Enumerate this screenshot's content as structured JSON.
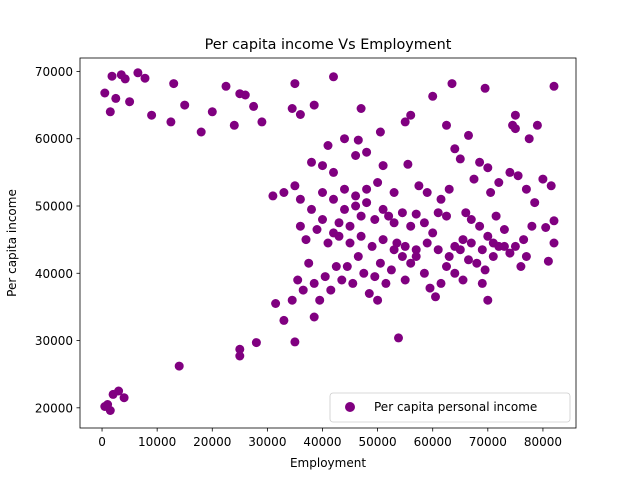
{
  "chart_data": {
    "type": "scatter",
    "title": "Per capita income Vs Employment",
    "xlabel": "Employment",
    "ylabel": "Per capita income",
    "xlim": [
      -4000,
      86000
    ],
    "ylim": [
      17000,
      72000
    ],
    "x_ticks": [
      0,
      10000,
      20000,
      30000,
      40000,
      50000,
      60000,
      70000,
      80000
    ],
    "x_tick_labels": [
      "0",
      "10000",
      "20000",
      "30000",
      "40000",
      "50000",
      "60000",
      "70000",
      "80000"
    ],
    "y_ticks": [
      20000,
      30000,
      40000,
      50000,
      60000,
      70000
    ],
    "y_tick_labels": [
      "20000",
      "30000",
      "40000",
      "50000",
      "60000",
      "70000"
    ],
    "grid": false,
    "legend_position": "lower right",
    "marker_color": "#800080",
    "series": [
      {
        "name": "Per capita personal income",
        "points": [
          [
            500,
            66800
          ],
          [
            1800,
            69300
          ],
          [
            3500,
            69500
          ],
          [
            4200,
            68900
          ],
          [
            6500,
            69800
          ],
          [
            7800,
            69000
          ],
          [
            13000,
            68200
          ],
          [
            15000,
            65000
          ],
          [
            20000,
            64000
          ],
          [
            22500,
            67800
          ],
          [
            25000,
            66700
          ],
          [
            26000,
            66500
          ],
          [
            27500,
            64800
          ],
          [
            35000,
            68200
          ],
          [
            42000,
            69200
          ],
          [
            47000,
            64500
          ],
          [
            60000,
            66300
          ],
          [
            63500,
            68200
          ],
          [
            69500,
            67500
          ],
          [
            82000,
            67800
          ],
          [
            1500,
            64000
          ],
          [
            2500,
            66000
          ],
          [
            5000,
            65500
          ],
          [
            9000,
            63500
          ],
          [
            12500,
            62500
          ],
          [
            18000,
            61000
          ],
          [
            24000,
            62000
          ],
          [
            29000,
            62500
          ],
          [
            34500,
            64500
          ],
          [
            36000,
            63600
          ],
          [
            38500,
            65000
          ],
          [
            41000,
            59000
          ],
          [
            44000,
            60000
          ],
          [
            46500,
            59800
          ],
          [
            48000,
            58000
          ],
          [
            50500,
            61000
          ],
          [
            55000,
            62500
          ],
          [
            56000,
            63500
          ],
          [
            62500,
            62000
          ],
          [
            64000,
            58500
          ],
          [
            65000,
            57000
          ],
          [
            66500,
            60500
          ],
          [
            68500,
            56500
          ],
          [
            70000,
            55700
          ],
          [
            74500,
            62000
          ],
          [
            75000,
            63500
          ],
          [
            77500,
            60000
          ],
          [
            79000,
            62000
          ],
          [
            75000,
            61500
          ],
          [
            38000,
            56500
          ],
          [
            40000,
            56000
          ],
          [
            42000,
            55000
          ],
          [
            46000,
            57500
          ],
          [
            51000,
            56000
          ],
          [
            53000,
            52000
          ],
          [
            55500,
            56200
          ],
          [
            57500,
            53000
          ],
          [
            59000,
            52000
          ],
          [
            61500,
            51000
          ],
          [
            63000,
            52500
          ],
          [
            66000,
            49000
          ],
          [
            67500,
            54000
          ],
          [
            70500,
            52000
          ],
          [
            72000,
            53500
          ],
          [
            74000,
            55000
          ],
          [
            75500,
            54500
          ],
          [
            77000,
            52500
          ],
          [
            78500,
            50500
          ],
          [
            80000,
            54000
          ],
          [
            81500,
            53000
          ],
          [
            82000,
            47800
          ],
          [
            80500,
            46800
          ],
          [
            78000,
            47000
          ],
          [
            76500,
            45000
          ],
          [
            75000,
            44000
          ],
          [
            73000,
            46500
          ],
          [
            71500,
            48500
          ],
          [
            70000,
            45500
          ],
          [
            68500,
            47000
          ],
          [
            67000,
            48000
          ],
          [
            65500,
            45000
          ],
          [
            64000,
            44000
          ],
          [
            62500,
            48500
          ],
          [
            61000,
            49000
          ],
          [
            60000,
            46000
          ],
          [
            58500,
            47500
          ],
          [
            57000,
            48800
          ],
          [
            56000,
            47000
          ],
          [
            54500,
            49000
          ],
          [
            53000,
            47500
          ],
          [
            52000,
            48500
          ],
          [
            51000,
            49500
          ],
          [
            49500,
            48000
          ],
          [
            48000,
            50500
          ],
          [
            47000,
            48500
          ],
          [
            46000,
            50000
          ],
          [
            45000,
            47000
          ],
          [
            44000,
            49500
          ],
          [
            43000,
            47500
          ],
          [
            42000,
            46000
          ],
          [
            82000,
            44500
          ],
          [
            81000,
            41800
          ],
          [
            77000,
            42500
          ],
          [
            76000,
            41000
          ],
          [
            74000,
            43000
          ],
          [
            72000,
            44000
          ],
          [
            71000,
            42500
          ],
          [
            69500,
            40500
          ],
          [
            69000,
            38500
          ],
          [
            68000,
            41500
          ],
          [
            66500,
            42000
          ],
          [
            65500,
            39000
          ],
          [
            64000,
            40000
          ],
          [
            62500,
            41000
          ],
          [
            61500,
            38500
          ],
          [
            60500,
            36500
          ],
          [
            59500,
            37800
          ],
          [
            58500,
            40000
          ],
          [
            57000,
            42500
          ],
          [
            56000,
            41500
          ],
          [
            55000,
            39000
          ],
          [
            54500,
            42500
          ],
          [
            53500,
            44500
          ],
          [
            52500,
            40500
          ],
          [
            51500,
            38500
          ],
          [
            50500,
            41500
          ],
          [
            49500,
            39500
          ],
          [
            48500,
            37000
          ],
          [
            47500,
            40000
          ],
          [
            46500,
            42500
          ],
          [
            45500,
            38500
          ],
          [
            44500,
            41000
          ],
          [
            43500,
            39000
          ],
          [
            42500,
            41000
          ],
          [
            41500,
            37500
          ],
          [
            40500,
            39500
          ],
          [
            39500,
            36000
          ],
          [
            38500,
            38500
          ],
          [
            37500,
            41500
          ],
          [
            36500,
            37500
          ],
          [
            35500,
            39000
          ],
          [
            34500,
            36000
          ],
          [
            50000,
            36000
          ],
          [
            53800,
            30400
          ],
          [
            70000,
            36000
          ],
          [
            38500,
            33500
          ],
          [
            35000,
            29800
          ],
          [
            31500,
            35500
          ],
          [
            33000,
            33000
          ],
          [
            28000,
            29700
          ],
          [
            25000,
            28700
          ],
          [
            25000,
            27700
          ],
          [
            14000,
            26200
          ],
          [
            3000,
            22500
          ],
          [
            2000,
            22000
          ],
          [
            4000,
            21500
          ],
          [
            1000,
            20500
          ],
          [
            1500,
            19600
          ],
          [
            500,
            20200
          ],
          [
            40000,
            52000
          ],
          [
            42000,
            51000
          ],
          [
            44000,
            52500
          ],
          [
            46000,
            51500
          ],
          [
            48000,
            52500
          ],
          [
            50000,
            53500
          ],
          [
            36000,
            51000
          ],
          [
            35000,
            53000
          ],
          [
            33000,
            52000
          ],
          [
            31000,
            51500
          ],
          [
            38000,
            49500
          ],
          [
            40000,
            48000
          ],
          [
            36000,
            47000
          ],
          [
            37000,
            45000
          ],
          [
            39000,
            46500
          ],
          [
            41000,
            44500
          ],
          [
            43000,
            45500
          ],
          [
            45000,
            44500
          ],
          [
            47000,
            45500
          ],
          [
            49000,
            44000
          ],
          [
            51000,
            45000
          ],
          [
            53000,
            43500
          ],
          [
            55000,
            44000
          ],
          [
            57000,
            43500
          ],
          [
            59000,
            44500
          ],
          [
            61000,
            43500
          ],
          [
            63000,
            42500
          ],
          [
            65000,
            43500
          ],
          [
            67000,
            44500
          ],
          [
            69000,
            43500
          ],
          [
            71000,
            44500
          ],
          [
            73000,
            44000
          ]
        ]
      }
    ]
  }
}
